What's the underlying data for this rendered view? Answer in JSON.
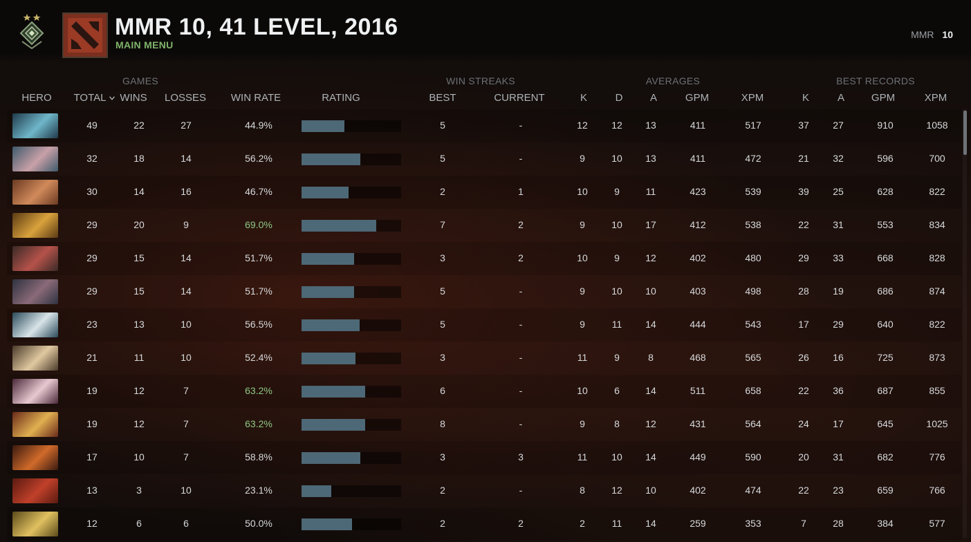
{
  "header": {
    "title": "MMR 10, 41 LEVEL, 2016",
    "subtitle": "MAIN MENU",
    "mmr_label": "MMR",
    "mmr_value": "10"
  },
  "groups": {
    "games": "GAMES",
    "win_streaks": "WIN STREAKS",
    "averages": "AVERAGES",
    "best_records": "BEST RECORDS"
  },
  "columns": {
    "hero": "HERO",
    "total": "TOTAL",
    "wins": "WINS",
    "losses": "LOSSES",
    "win_rate": "WIN RATE",
    "rating": "RATING",
    "best": "BEST",
    "current": "CURRENT",
    "avg_k": "K",
    "avg_d": "D",
    "avg_a": "A",
    "avg_gpm": "GPM",
    "avg_xpm": "XPM",
    "best_k": "K",
    "best_a": "A",
    "best_gpm": "GPM",
    "best_xpm": "XPM"
  },
  "colors": {
    "accent_green": "#7fb36a",
    "rating_bar": "#4d6876",
    "high_winrate": "#8ec884"
  },
  "rows": [
    {
      "portrait": [
        "#1f3a4a",
        "#6fb6c9"
      ],
      "total": "49",
      "wins": "22",
      "losses": "27",
      "win_rate": "44.9%",
      "rating": 0.43,
      "best": "5",
      "current": "-",
      "avg_k": "12",
      "avg_d": "12",
      "avg_a": "13",
      "avg_gpm": "411",
      "avg_xpm": "517",
      "best_k": "37",
      "best_a": "27",
      "best_gpm": "910",
      "best_xpm": "1058"
    },
    {
      "portrait": [
        "#3d5a6a",
        "#c9a0a8"
      ],
      "total": "32",
      "wins": "18",
      "losses": "14",
      "win_rate": "56.2%",
      "rating": 0.59,
      "best": "5",
      "current": "-",
      "avg_k": "9",
      "avg_d": "10",
      "avg_a": "13",
      "avg_gpm": "411",
      "avg_xpm": "472",
      "best_k": "21",
      "best_a": "32",
      "best_gpm": "596",
      "best_xpm": "700"
    },
    {
      "portrait": [
        "#6b3a22",
        "#d08a5a"
      ],
      "total": "30",
      "wins": "14",
      "losses": "16",
      "win_rate": "46.7%",
      "rating": 0.47,
      "best": "2",
      "current": "1",
      "avg_k": "10",
      "avg_d": "9",
      "avg_a": "11",
      "avg_gpm": "423",
      "avg_xpm": "539",
      "best_k": "39",
      "best_a": "25",
      "best_gpm": "628",
      "best_xpm": "822"
    },
    {
      "portrait": [
        "#5a3a14",
        "#d9a23c"
      ],
      "total": "29",
      "wins": "20",
      "losses": "9",
      "win_rate": "69.0%",
      "rating": 0.75,
      "best": "7",
      "current": "2",
      "avg_k": "9",
      "avg_d": "10",
      "avg_a": "17",
      "avg_gpm": "412",
      "avg_xpm": "538",
      "best_k": "22",
      "best_a": "31",
      "best_gpm": "553",
      "best_xpm": "834"
    },
    {
      "portrait": [
        "#3a2a26",
        "#b5524a"
      ],
      "total": "29",
      "wins": "15",
      "losses": "14",
      "win_rate": "51.7%",
      "rating": 0.53,
      "best": "3",
      "current": "2",
      "avg_k": "10",
      "avg_d": "9",
      "avg_a": "12",
      "avg_gpm": "402",
      "avg_xpm": "480",
      "best_k": "29",
      "best_a": "33",
      "best_gpm": "668",
      "best_xpm": "828"
    },
    {
      "portrait": [
        "#2e3240",
        "#8a6a78"
      ],
      "total": "29",
      "wins": "15",
      "losses": "14",
      "win_rate": "51.7%",
      "rating": 0.53,
      "best": "5",
      "current": "-",
      "avg_k": "9",
      "avg_d": "10",
      "avg_a": "10",
      "avg_gpm": "403",
      "avg_xpm": "498",
      "best_k": "28",
      "best_a": "19",
      "best_gpm": "686",
      "best_xpm": "874"
    },
    {
      "portrait": [
        "#2a4a5a",
        "#d8e4e8"
      ],
      "total": "23",
      "wins": "13",
      "losses": "10",
      "win_rate": "56.5%",
      "rating": 0.58,
      "best": "5",
      "current": "-",
      "avg_k": "9",
      "avg_d": "11",
      "avg_a": "14",
      "avg_gpm": "444",
      "avg_xpm": "543",
      "best_k": "17",
      "best_a": "29",
      "best_gpm": "640",
      "best_xpm": "822"
    },
    {
      "portrait": [
        "#4a3a2a",
        "#e0c8a0"
      ],
      "total": "21",
      "wins": "11",
      "losses": "10",
      "win_rate": "52.4%",
      "rating": 0.54,
      "best": "3",
      "current": "-",
      "avg_k": "11",
      "avg_d": "9",
      "avg_a": "8",
      "avg_gpm": "468",
      "avg_xpm": "565",
      "best_k": "26",
      "best_a": "16",
      "best_gpm": "725",
      "best_xpm": "873"
    },
    {
      "portrait": [
        "#4a2a3a",
        "#e8c8d0"
      ],
      "total": "19",
      "wins": "12",
      "losses": "7",
      "win_rate": "63.2%",
      "rating": 0.64,
      "best": "6",
      "current": "-",
      "avg_k": "10",
      "avg_d": "6",
      "avg_a": "14",
      "avg_gpm": "511",
      "avg_xpm": "658",
      "best_k": "22",
      "best_a": "36",
      "best_gpm": "687",
      "best_xpm": "855"
    },
    {
      "portrait": [
        "#6a2a1a",
        "#e0b050"
      ],
      "total": "19",
      "wins": "12",
      "losses": "7",
      "win_rate": "63.2%",
      "rating": 0.64,
      "best": "8",
      "current": "-",
      "avg_k": "9",
      "avg_d": "8",
      "avg_a": "12",
      "avg_gpm": "431",
      "avg_xpm": "564",
      "best_k": "24",
      "best_a": "17",
      "best_gpm": "645",
      "best_xpm": "1025"
    },
    {
      "portrait": [
        "#3a1a10",
        "#d06a2a"
      ],
      "total": "17",
      "wins": "10",
      "losses": "7",
      "win_rate": "58.8%",
      "rating": 0.59,
      "best": "3",
      "current": "3",
      "avg_k": "11",
      "avg_d": "10",
      "avg_a": "14",
      "avg_gpm": "449",
      "avg_xpm": "590",
      "best_k": "20",
      "best_a": "31",
      "best_gpm": "682",
      "best_xpm": "776"
    },
    {
      "portrait": [
        "#5a1a10",
        "#c0402a"
      ],
      "total": "13",
      "wins": "3",
      "losses": "10",
      "win_rate": "23.1%",
      "rating": 0.3,
      "best": "2",
      "current": "-",
      "avg_k": "8",
      "avg_d": "12",
      "avg_a": "10",
      "avg_gpm": "402",
      "avg_xpm": "474",
      "best_k": "22",
      "best_a": "23",
      "best_gpm": "659",
      "best_xpm": "766"
    },
    {
      "portrait": [
        "#5a4a1a",
        "#e0c060"
      ],
      "total": "12",
      "wins": "6",
      "losses": "6",
      "win_rate": "50.0%",
      "rating": 0.51,
      "best": "2",
      "current": "2",
      "avg_k": "2",
      "avg_d": "11",
      "avg_a": "14",
      "avg_gpm": "259",
      "avg_xpm": "353",
      "best_k": "7",
      "best_a": "28",
      "best_gpm": "384",
      "best_xpm": "577"
    }
  ]
}
